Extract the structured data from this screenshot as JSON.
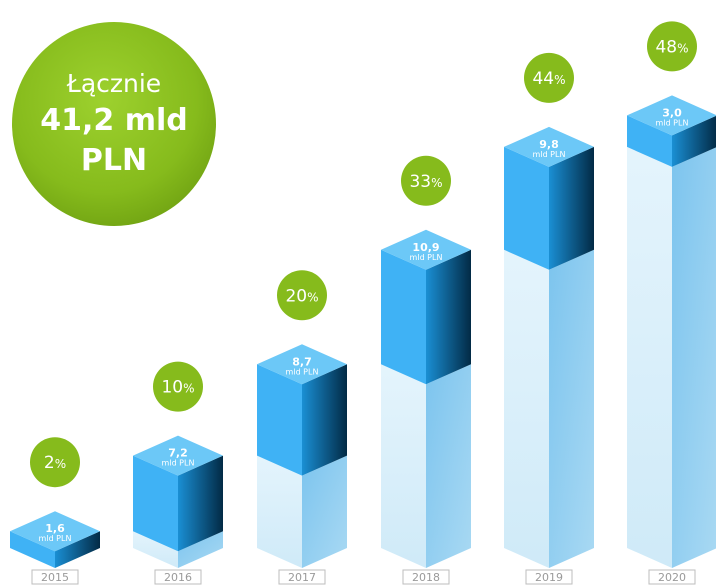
{
  "total": {
    "label": "Łącznie",
    "value_line1": "41,2 mld",
    "value_line2": "PLN"
  },
  "colors": {
    "increment_top": "#6cc8f7",
    "increment_front": "#3fb2f5",
    "increment_side_dark": "#022a45",
    "base_front": "#dff1fb",
    "base_side": "#4aa6df",
    "badge": "#86bb1c",
    "year_box_border": "#bdbdbd",
    "year_text": "#9a9a9a"
  },
  "chart_data": {
    "type": "bar",
    "title": "",
    "categories": [
      "2015",
      "2016",
      "2017",
      "2018",
      "2019",
      "2020"
    ],
    "series": [
      {
        "values": [
          1.6,
          7.2,
          8.7,
          10.9,
          9.8,
          3.0
        ],
        "value_labels": [
          "1,6",
          "7,2",
          "8,7",
          "10,9",
          "9,8",
          "3,0"
        ],
        "unit_label": "mld PLN"
      }
    ],
    "cumulative": [
      1.6,
      8.8,
      17.5,
      28.4,
      38.2,
      41.2
    ],
    "percent_labels": [
      {
        "number": "2",
        "sign": "%"
      },
      {
        "number": "10",
        "sign": "%"
      },
      {
        "number": "20",
        "sign": "%"
      },
      {
        "number": "33",
        "sign": "%"
      },
      {
        "number": "44",
        "sign": "%"
      },
      {
        "number": "48",
        "sign": "%"
      }
    ]
  }
}
